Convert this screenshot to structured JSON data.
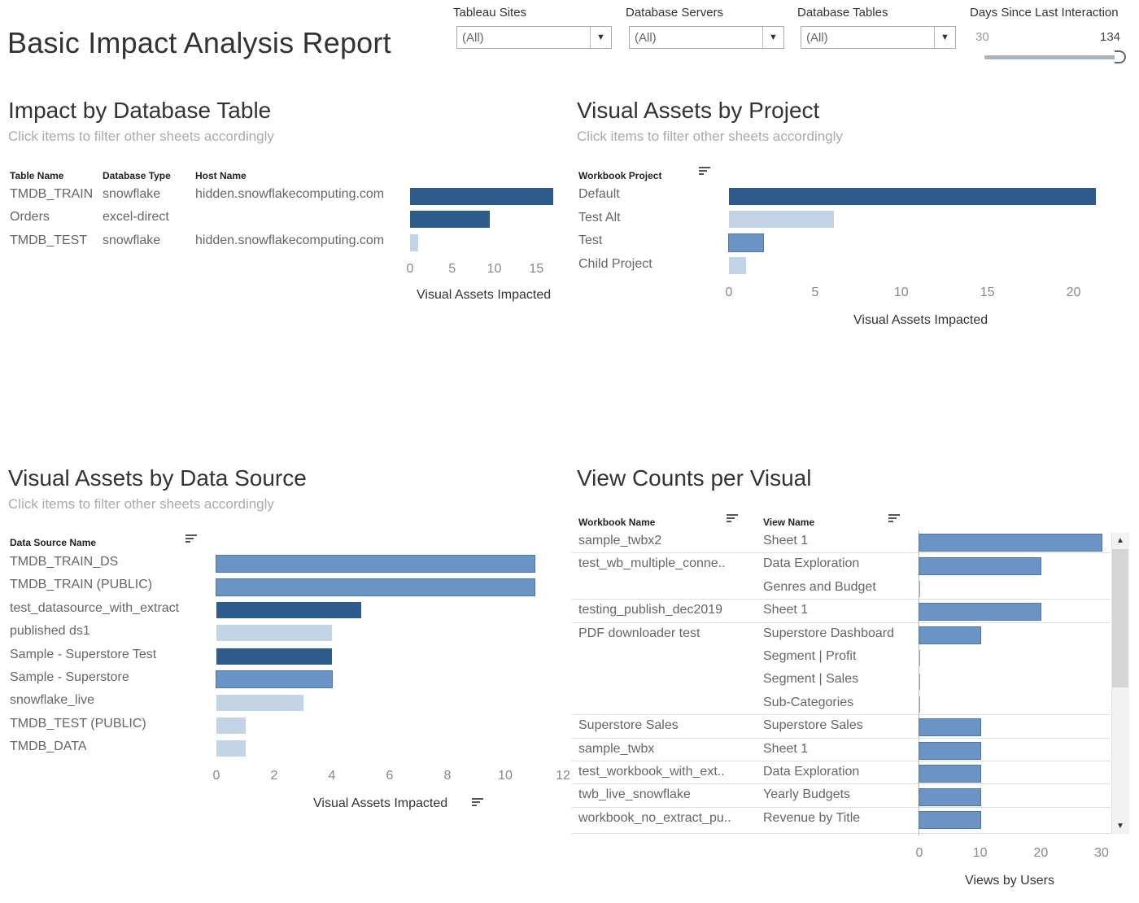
{
  "title": "Basic Impact Analysis Report",
  "filters": [
    {
      "label": "Tableau Sites",
      "value": "(All)"
    },
    {
      "label": "Database Servers",
      "value": "(All)"
    },
    {
      "label": "Database Tables",
      "value": "(All)"
    }
  ],
  "range_filter": {
    "label": "Days Since Last Interaction",
    "min": "30",
    "max": "134"
  },
  "colors": {
    "dark": "#2f5b8a",
    "medium": "#6b93c4",
    "light": "#c2d4e6"
  },
  "sections": {
    "db_table": {
      "title": "Impact by Database Table",
      "subtitle": "Click items to filter other sheets accordingly",
      "columns": [
        "Table Name",
        "Database Type",
        "Host Name"
      ],
      "rows": [
        {
          "table": "TMDB_TRAIN",
          "type": "snowflake",
          "host": "hidden.snowflakecomputing.com"
        },
        {
          "table": "Orders",
          "type": "excel-direct",
          "host": ""
        },
        {
          "table": "TMDB_TEST",
          "type": "snowflake",
          "host": "hidden.snowflakecomputing.com"
        }
      ],
      "axis_title": "Visual Assets Impacted"
    },
    "project": {
      "title": "Visual Assets by Project",
      "subtitle": "Click items to filter other sheets accordingly",
      "column": "Workbook Project",
      "axis_title": "Visual Assets Impacted"
    },
    "data_source": {
      "title": "Visual Assets by Data Source",
      "subtitle": "Click items to filter other sheets accordingly",
      "column": "Data Source Name",
      "axis_title": "Visual Assets Impacted"
    },
    "view_counts": {
      "title": "View Counts per Visual",
      "columns": [
        "Workbook Name",
        "View Name"
      ],
      "axis_title": "Views by Users",
      "rows": [
        {
          "workbook": "sample_twbx2",
          "view": "Sheet 1"
        },
        {
          "workbook": "test_wb_multiple_conne..",
          "view": "Data Exploration"
        },
        {
          "workbook": "",
          "view": "Genres and Budget"
        },
        {
          "workbook": "testing_publish_dec2019",
          "view": "Sheet 1"
        },
        {
          "workbook": "PDF downloader test",
          "view": "Superstore Dashboard"
        },
        {
          "workbook": "",
          "view": "Segment | Profit"
        },
        {
          "workbook": "",
          "view": "Segment | Sales"
        },
        {
          "workbook": "",
          "view": "Sub-Categories"
        },
        {
          "workbook": "Superstore Sales",
          "view": "Superstore Sales"
        },
        {
          "workbook": "sample_twbx",
          "view": "Sheet 1"
        },
        {
          "workbook": "test_workbook_with_ext..",
          "view": "Data Exploration"
        },
        {
          "workbook": "twb_live_snowflake",
          "view": "Yearly Budgets"
        },
        {
          "workbook": "workbook_no_extract_pu..",
          "view": "Revenue by Title"
        }
      ]
    }
  },
  "chart_data": [
    {
      "type": "bar",
      "orientation": "horizontal",
      "categories": [
        "TMDB_TRAIN",
        "Orders",
        "TMDB_TEST"
      ],
      "values": [
        17,
        9.5,
        1
      ],
      "shades": [
        "dark",
        "dark",
        "light"
      ],
      "xlim": [
        0,
        17
      ],
      "ticks": [
        0,
        5,
        10,
        15
      ],
      "xlabel": "Visual Assets Impacted"
    },
    {
      "type": "bar",
      "orientation": "horizontal",
      "categories": [
        "Default",
        "Test Alt",
        "Test",
        "Child Project"
      ],
      "values": [
        21.3,
        6.1,
        2,
        1
      ],
      "shades": [
        "dark",
        "light",
        "medium",
        "light"
      ],
      "xlim": [
        0,
        21.3
      ],
      "ticks": [
        0,
        5,
        10,
        15,
        20
      ],
      "xlabel": "Visual Assets Impacted"
    },
    {
      "type": "bar",
      "orientation": "horizontal",
      "categories": [
        "TMDB_TRAIN_DS",
        "TMDB_TRAIN (PUBLIC)",
        "test_datasource_with_extract",
        "published ds1",
        "Sample - Superstore Test",
        "Sample - Superstore",
        "snowflake_live",
        "TMDB_TEST (PUBLIC)",
        "TMDB_DATA"
      ],
      "values": [
        11,
        11,
        5,
        4,
        4,
        4,
        3,
        1,
        1
      ],
      "shades": [
        "medium",
        "medium",
        "dark",
        "light",
        "dark",
        "medium",
        "light",
        "light",
        "light"
      ],
      "xlim": [
        0,
        12
      ],
      "ticks": [
        0,
        2,
        4,
        6,
        8,
        10,
        12
      ],
      "xlabel": "Visual Assets Impacted"
    },
    {
      "type": "bar",
      "orientation": "horizontal",
      "categories": [
        "sample_twbx2 / Sheet 1",
        "test_wb_multiple_conne.. / Data Exploration",
        "Genres and Budget",
        "testing_publish_dec2019 / Sheet 1",
        "PDF downloader test / Superstore Dashboard",
        "Segment | Profit",
        "Segment | Sales",
        "Sub-Categories",
        "Superstore Sales",
        "sample_twbx / Sheet 1",
        "test_workbook_with_ext.. / Data Exploration",
        "twb_live_snowflake / Yearly Budgets",
        "workbook_no_extract_pu.. / Revenue by Title"
      ],
      "values": [
        30,
        20,
        0,
        20,
        10,
        0,
        0,
        0,
        10,
        10,
        10,
        10,
        10
      ],
      "xlim": [
        0,
        30
      ],
      "ticks": [
        0,
        10,
        20,
        30
      ],
      "xlabel": "Views by Users"
    }
  ]
}
